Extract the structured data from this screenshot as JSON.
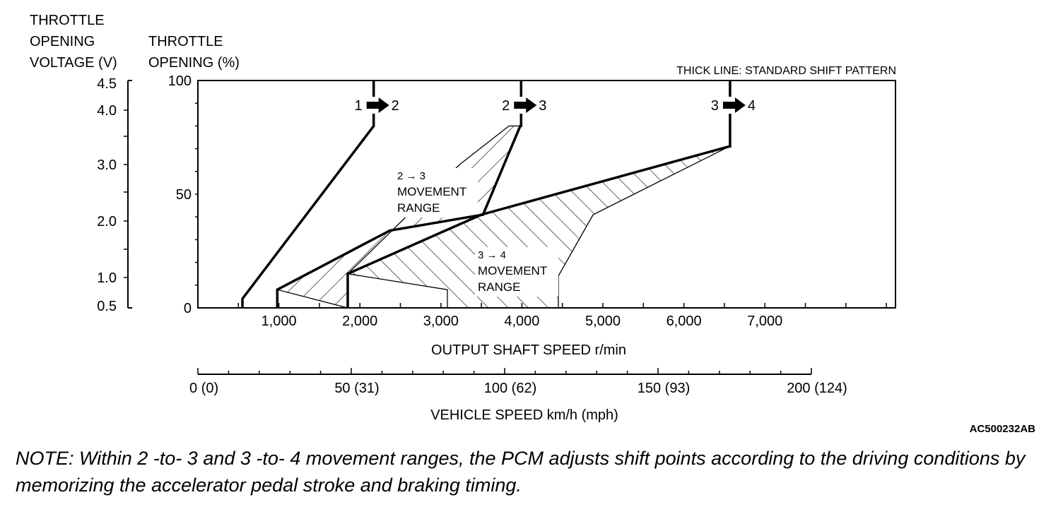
{
  "chart_data": {
    "type": "line",
    "title": "",
    "legend_note": "THICK LINE: STANDARD SHIFT PATTERN",
    "figure_code": "AC500232AB",
    "left_axis": {
      "label_lines": [
        "THROTTLE",
        "OPENING",
        "VOLTAGE (V)"
      ],
      "ticks": [
        "4.5",
        "4.0",
        "3.0",
        "2.0",
        "1.0",
        "0.5"
      ],
      "tick_values": [
        4.5,
        4.0,
        3.0,
        2.0,
        1.0,
        0.5
      ]
    },
    "y_axis": {
      "label_lines": [
        "THROTTLE",
        "OPENING (%)"
      ],
      "ticks": [
        "100",
        "50",
        "0"
      ],
      "tick_values": [
        100,
        50,
        0
      ],
      "range": [
        0,
        100
      ]
    },
    "x_axis": {
      "label": "OUTPUT SHAFT SPEED r/min",
      "ticks": [
        "1,000",
        "2,000",
        "3,000",
        "4,000",
        "5,000",
        "6,000",
        "7,000"
      ],
      "tick_values": [
        1000,
        2000,
        3000,
        4000,
        5000,
        6000,
        7000
      ],
      "range": [
        0,
        8600
      ]
    },
    "x2_axis": {
      "label": "VEHICLE SPEED km/h (mph)",
      "ticks": [
        "0 (0)",
        "50 (31)",
        "100 (62)",
        "150 (93)",
        "200 (124)"
      ],
      "tick_values": [
        0,
        50,
        100,
        150,
        200
      ]
    },
    "shift_labels": [
      {
        "from": "1",
        "to": "2",
        "x": 2170
      },
      {
        "from": "2",
        "to": "3",
        "x": 3990
      },
      {
        "from": "3",
        "to": "4",
        "x": 6570
      }
    ],
    "series": [
      {
        "name": "1 → 2",
        "x": [
          550,
          550,
          2170,
          2170
        ],
        "y": [
          0,
          4,
          80,
          100
        ]
      },
      {
        "name": "2 → 3",
        "x": [
          980,
          980,
          2370,
          3520,
          3980,
          3990,
          3990
        ],
        "y": [
          0,
          8,
          34,
          41,
          80,
          80,
          100
        ]
      },
      {
        "name": "3 → 4",
        "x": [
          1850,
          1850,
          3500,
          6560,
          6570,
          6570
        ],
        "y": [
          0,
          15,
          41,
          71,
          71,
          100
        ]
      }
    ],
    "regions": [
      {
        "label_lines": [
          "2 → 3",
          "MOVEMENT",
          "RANGE"
        ],
        "x": [
          980,
          2370,
          3520,
          3980,
          3840,
          3230,
          1850,
          1850
        ],
        "y": [
          8,
          34,
          41,
          80,
          80,
          63,
          15,
          0
        ]
      },
      {
        "label_lines": [
          "3 → 4",
          "MOVEMENT",
          "RANGE"
        ],
        "x": [
          1850,
          3500,
          6560,
          4880,
          4450,
          4450,
          3080,
          3080
        ],
        "y": [
          15,
          41,
          71,
          41,
          14,
          0,
          0,
          8
        ]
      }
    ]
  },
  "note": "NOTE: Within 2 -to- 3 and 3 -to- 4 movement ranges, the PCM adjusts shift points according to the driving conditions by memorizing the accelerator pedal stroke and braking timing."
}
